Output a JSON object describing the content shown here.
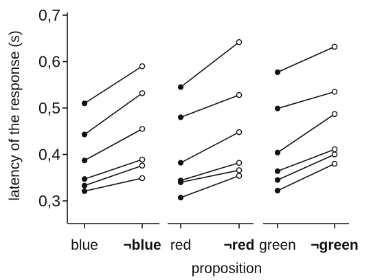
{
  "chart_data": {
    "type": "line",
    "title": "",
    "xlabel": "proposition",
    "ylabel": "latency of the response (s)",
    "ylim": [
      0.3,
      0.7
    ],
    "yticks": [
      "0,3",
      "0,4",
      "0,5",
      "0,6",
      "0,7"
    ],
    "ytick_values": [
      0.3,
      0.4,
      0.5,
      0.6,
      0.7
    ],
    "grid": false,
    "legend": "none",
    "groups": [
      {
        "categories": [
          "blue",
          "¬blue"
        ],
        "pairs": [
          [
            0.51,
            0.59
          ],
          [
            0.443,
            0.532
          ],
          [
            0.387,
            0.455
          ],
          [
            0.347,
            0.389
          ],
          [
            0.333,
            0.376
          ],
          [
            0.321,
            0.349
          ]
        ]
      },
      {
        "categories": [
          "red",
          "¬red"
        ],
        "pairs": [
          [
            0.545,
            0.642
          ],
          [
            0.48,
            0.528
          ],
          [
            0.382,
            0.448
          ],
          [
            0.344,
            0.382
          ],
          [
            0.34,
            0.366
          ],
          [
            0.307,
            0.354
          ]
        ]
      },
      {
        "categories": [
          "green",
          "¬green"
        ],
        "pairs": [
          [
            0.577,
            0.632
          ],
          [
            0.499,
            0.535
          ],
          [
            0.404,
            0.487
          ],
          [
            0.364,
            0.411
          ],
          [
            0.345,
            0.4
          ],
          [
            0.322,
            0.38
          ]
        ]
      }
    ]
  }
}
